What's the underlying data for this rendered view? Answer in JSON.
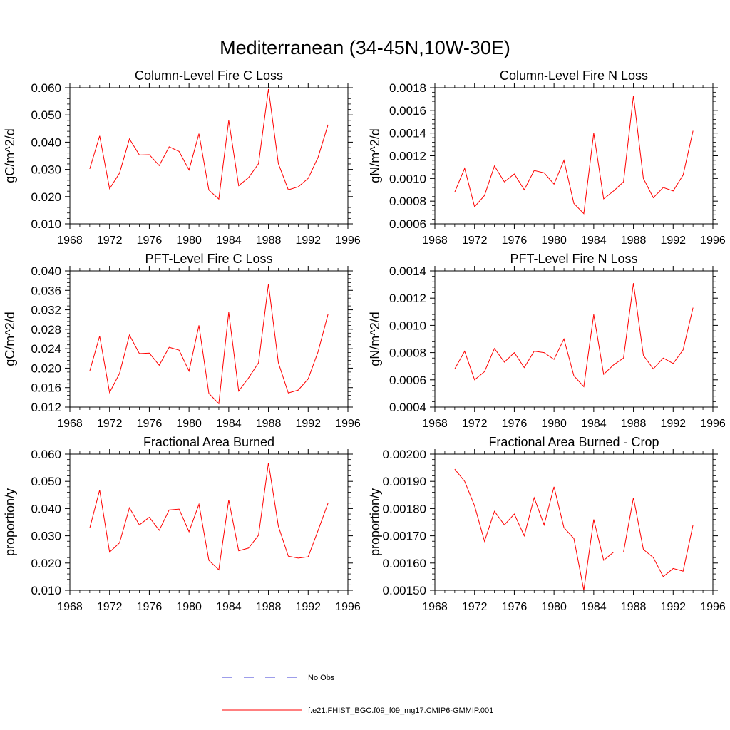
{
  "page_title": "Mediterranean (34-45N,10W-30E)",
  "legend": {
    "items": [
      {
        "label": "No Obs",
        "color": "#3b3bd6",
        "style": "dashed"
      },
      {
        "label": "f.e21.FHIST_BGC.f09_f09_mg17.CMIP6-GMMIP.001",
        "color": "#ff0000",
        "style": "solid"
      }
    ]
  },
  "chart_data": [
    {
      "type": "line",
      "title": "Column-Level Fire C Loss",
      "xlabel": "",
      "ylabel": "gC/m^2/d",
      "xlim": [
        1968,
        1996
      ],
      "ylim": [
        0.01,
        0.06
      ],
      "xticks": [
        1968,
        1972,
        1976,
        1980,
        1984,
        1988,
        1992,
        1996
      ],
      "yticks": [
        0.01,
        0.02,
        0.03,
        0.04,
        0.05,
        0.06
      ],
      "ytick_labels": [
        "0.010",
        "0.020",
        "0.030",
        "0.040",
        "0.050",
        "0.060"
      ],
      "x": [
        1970,
        1971,
        1972,
        1973,
        1974,
        1975,
        1976,
        1977,
        1978,
        1979,
        1980,
        1981,
        1982,
        1983,
        1984,
        1985,
        1986,
        1987,
        1988,
        1989,
        1990,
        1991,
        1992,
        1993,
        1994
      ],
      "series": [
        {
          "name": "f.e21.FHIST_BGC.f09_f09_mg17.CMIP6-GMMIP.001",
          "color": "#ff0000",
          "values": [
            0.0302,
            0.0423,
            0.0229,
            0.0286,
            0.0412,
            0.0353,
            0.0354,
            0.0314,
            0.0383,
            0.0366,
            0.0298,
            0.0431,
            0.0224,
            0.0191,
            0.048,
            0.024,
            0.027,
            0.0321,
            0.0595,
            0.0321,
            0.0225,
            0.0236,
            0.0267,
            0.0345,
            0.0464
          ]
        }
      ]
    },
    {
      "type": "line",
      "title": "Column-Level Fire N Loss",
      "xlabel": "",
      "ylabel": "gN/m^2/d",
      "xlim": [
        1968,
        1996
      ],
      "ylim": [
        0.0006,
        0.0018
      ],
      "xticks": [
        1968,
        1972,
        1976,
        1980,
        1984,
        1988,
        1992,
        1996
      ],
      "yticks": [
        0.0006,
        0.0008,
        0.001,
        0.0012,
        0.0014,
        0.0016,
        0.0018
      ],
      "ytick_labels": [
        "0.0006",
        "0.0008",
        "0.0010",
        "0.0012",
        "0.0014",
        "0.0016",
        "0.0018"
      ],
      "x": [
        1970,
        1971,
        1972,
        1973,
        1974,
        1975,
        1976,
        1977,
        1978,
        1979,
        1980,
        1981,
        1982,
        1983,
        1984,
        1985,
        1986,
        1987,
        1988,
        1989,
        1990,
        1991,
        1992,
        1993,
        1994
      ],
      "series": [
        {
          "name": "f.e21.FHIST_BGC.f09_f09_mg17.CMIP6-GMMIP.001",
          "color": "#ff0000",
          "values": [
            0.00088,
            0.00109,
            0.00075,
            0.00085,
            0.00111,
            0.00097,
            0.00104,
            0.0009,
            0.00107,
            0.00105,
            0.00095,
            0.00116,
            0.00078,
            0.00069,
            0.0014,
            0.00082,
            0.00089,
            0.00097,
            0.00173,
            0.001,
            0.00083,
            0.00092,
            0.00089,
            0.00103,
            0.00142
          ]
        }
      ]
    },
    {
      "type": "line",
      "title": "PFT-Level Fire C Loss",
      "xlabel": "",
      "ylabel": "gC/m^2/d",
      "xlim": [
        1968,
        1996
      ],
      "ylim": [
        0.012,
        0.04
      ],
      "xticks": [
        1968,
        1972,
        1976,
        1980,
        1984,
        1988,
        1992,
        1996
      ],
      "yticks": [
        0.012,
        0.016,
        0.02,
        0.024,
        0.028,
        0.032,
        0.036,
        0.04
      ],
      "ytick_labels": [
        "0.012",
        "0.016",
        "0.020",
        "0.024",
        "0.028",
        "0.032",
        "0.036",
        "0.040"
      ],
      "x": [
        1970,
        1971,
        1972,
        1973,
        1974,
        1975,
        1976,
        1977,
        1978,
        1979,
        1980,
        1981,
        1982,
        1983,
        1984,
        1985,
        1986,
        1987,
        1988,
        1989,
        1990,
        1991,
        1992,
        1993,
        1994
      ],
      "series": [
        {
          "name": "f.e21.FHIST_BGC.f09_f09_mg17.CMIP6-GMMIP.001",
          "color": "#ff0000",
          "values": [
            0.0194,
            0.0266,
            0.015,
            0.0189,
            0.0268,
            0.023,
            0.0231,
            0.0206,
            0.0243,
            0.0237,
            0.0194,
            0.0288,
            0.0148,
            0.0127,
            0.0315,
            0.0153,
            0.018,
            0.0211,
            0.0373,
            0.0211,
            0.0149,
            0.0155,
            0.0178,
            0.0234,
            0.0311
          ]
        }
      ]
    },
    {
      "type": "line",
      "title": "PFT-Level Fire N Loss",
      "xlabel": "",
      "ylabel": "gN/m^2/d",
      "xlim": [
        1968,
        1996
      ],
      "ylim": [
        0.0004,
        0.0014
      ],
      "xticks": [
        1968,
        1972,
        1976,
        1980,
        1984,
        1988,
        1992,
        1996
      ],
      "yticks": [
        0.0004,
        0.0006,
        0.0008,
        0.001,
        0.0012,
        0.0014
      ],
      "ytick_labels": [
        "0.0004",
        "0.0006",
        "0.0008",
        "0.0010",
        "0.0012",
        "0.0014"
      ],
      "x": [
        1970,
        1971,
        1972,
        1973,
        1974,
        1975,
        1976,
        1977,
        1978,
        1979,
        1980,
        1981,
        1982,
        1983,
        1984,
        1985,
        1986,
        1987,
        1988,
        1989,
        1990,
        1991,
        1992,
        1993,
        1994
      ],
      "series": [
        {
          "name": "f.e21.FHIST_BGC.f09_f09_mg17.CMIP6-GMMIP.001",
          "color": "#ff0000",
          "values": [
            0.00068,
            0.00081,
            0.0006,
            0.00066,
            0.00083,
            0.00073,
            0.0008,
            0.00069,
            0.00081,
            0.0008,
            0.00075,
            0.0009,
            0.00063,
            0.00055,
            0.00108,
            0.00064,
            0.00071,
            0.00076,
            0.00131,
            0.00078,
            0.00068,
            0.00076,
            0.00072,
            0.00082,
            0.00113
          ]
        }
      ]
    },
    {
      "type": "line",
      "title": "Fractional Area Burned",
      "xlabel": "",
      "ylabel": "proportion/y",
      "xlim": [
        1968,
        1996
      ],
      "ylim": [
        0.01,
        0.06
      ],
      "xticks": [
        1968,
        1972,
        1976,
        1980,
        1984,
        1988,
        1992,
        1996
      ],
      "yticks": [
        0.01,
        0.02,
        0.03,
        0.04,
        0.05,
        0.06
      ],
      "ytick_labels": [
        "0.010",
        "0.020",
        "0.030",
        "0.040",
        "0.050",
        "0.060"
      ],
      "x": [
        1970,
        1971,
        1972,
        1973,
        1974,
        1975,
        1976,
        1977,
        1978,
        1979,
        1980,
        1981,
        1982,
        1983,
        1984,
        1985,
        1986,
        1987,
        1988,
        1989,
        1990,
        1991,
        1992,
        1993,
        1994
      ],
      "series": [
        {
          "name": "f.e21.FHIST_BGC.f09_f09_mg17.CMIP6-GMMIP.001",
          "color": "#ff0000",
          "values": [
            0.0328,
            0.0468,
            0.024,
            0.0274,
            0.0403,
            0.034,
            0.0368,
            0.032,
            0.0395,
            0.0398,
            0.0315,
            0.0416,
            0.021,
            0.0175,
            0.0432,
            0.0245,
            0.0255,
            0.0302,
            0.0568,
            0.0335,
            0.0225,
            0.0218,
            0.0223,
            0.032,
            0.042
          ]
        }
      ]
    },
    {
      "type": "line",
      "title": "Fractional Area Burned - Crop",
      "xlabel": "",
      "ylabel": "proportion/y",
      "xlim": [
        1968,
        1996
      ],
      "ylim": [
        0.0015,
        0.002
      ],
      "xticks": [
        1968,
        1972,
        1976,
        1980,
        1984,
        1988,
        1992,
        1996
      ],
      "yticks": [
        0.0015,
        0.0016,
        0.0017,
        0.0018,
        0.0019,
        0.002
      ],
      "ytick_labels": [
        "0.00150",
        "0.00160",
        "0.00170",
        "0.00180",
        "0.00190",
        "0.00200"
      ],
      "x": [
        1970,
        1971,
        1972,
        1973,
        1974,
        1975,
        1976,
        1977,
        1978,
        1979,
        1980,
        1981,
        1982,
        1983,
        1984,
        1985,
        1986,
        1987,
        1988,
        1989,
        1990,
        1991,
        1992,
        1993,
        1994
      ],
      "series": [
        {
          "name": "f.e21.FHIST_BGC.f09_f09_mg17.CMIP6-GMMIP.001",
          "color": "#ff0000",
          "values": [
            0.001945,
            0.0019,
            0.00181,
            0.00168,
            0.00179,
            0.00174,
            0.00178,
            0.0017,
            0.00184,
            0.00174,
            0.00188,
            0.00173,
            0.00169,
            0.0015,
            0.00176,
            0.00161,
            0.00164,
            0.00164,
            0.00184,
            0.00165,
            0.00162,
            0.00155,
            0.00158,
            0.00157,
            0.00174
          ]
        }
      ]
    }
  ]
}
